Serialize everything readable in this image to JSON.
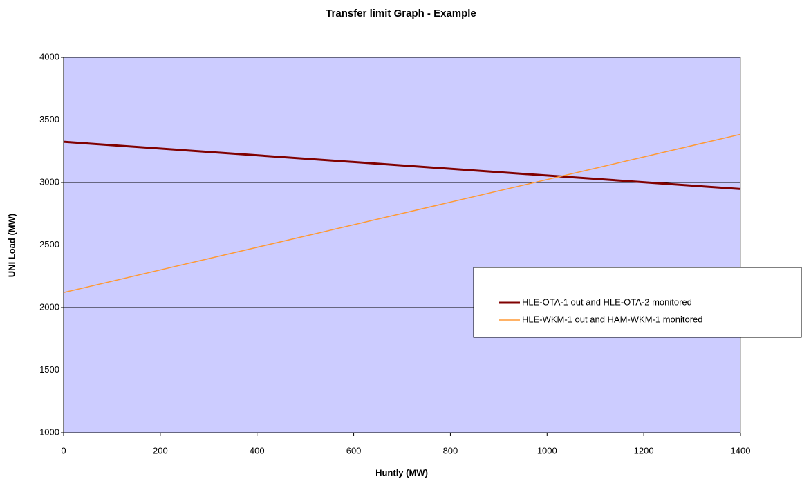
{
  "chart_data": {
    "type": "line",
    "title": "Transfer limit Graph - Example",
    "x_label": "Huntly (MW)",
    "y_label": "UNI Load (MW)",
    "x": [
      0,
      1400
    ],
    "series": [
      {
        "name": "HLE-OTA-1 out and HLE-OTA-2 monitored",
        "color": "#800000",
        "width": 3,
        "values": [
          3325,
          2948
        ]
      },
      {
        "name": "HLE-WKM-1 out and HAM-WKM-1 monitored",
        "color": "#ff9933",
        "width": 1.5,
        "values": [
          2120,
          3385
        ]
      }
    ],
    "xlim": [
      0,
      1400
    ],
    "xticks": [
      0,
      200,
      400,
      600,
      800,
      1000,
      1200,
      1400
    ],
    "ylim": [
      1000,
      4000
    ],
    "yticks": [
      1000,
      1500,
      2000,
      2500,
      3000,
      3500,
      4000
    ],
    "grid": true,
    "plot_background": "#ccccff",
    "legend": "right"
  }
}
